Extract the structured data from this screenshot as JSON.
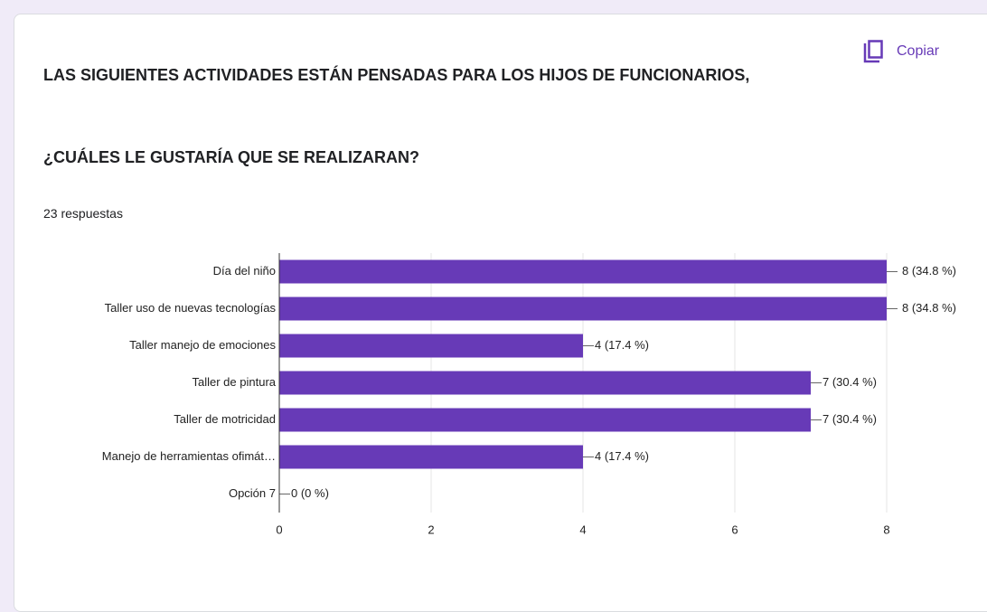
{
  "copy_button": "Copiar",
  "chart_data": {
    "type": "bar",
    "orientation": "horizontal",
    "title": "LAS SIGUIENTES ACTIVIDADES ESTÁN PENSADAS PARA LOS HIJOS DE FUNCIONARIOS,",
    "subtitle": "¿CUÁLES LE GUSTARÍA QUE SE REALIZARAN?",
    "responses": "23 respuestas",
    "categories": [
      "Día del niño",
      "Taller uso de nuevas tecnologías",
      "Taller manejo de emociones",
      "Taller de pintura",
      "Taller de motricidad",
      "Manejo de herramientas ofimát…",
      "Opción 7"
    ],
    "values": [
      8,
      8,
      4,
      7,
      7,
      4,
      0
    ],
    "value_labels": [
      "8 (34.8 %)",
      "8 (34.8 %)",
      "4 (17.4 %)",
      "7 (30.4 %)",
      "7 (30.4 %)",
      "4 (17.4 %)",
      "0 (0 %)"
    ],
    "color": "#673ab7",
    "xlim": [
      0,
      8
    ],
    "xticks": [
      0,
      2,
      4,
      6,
      8
    ],
    "grid": true
  }
}
